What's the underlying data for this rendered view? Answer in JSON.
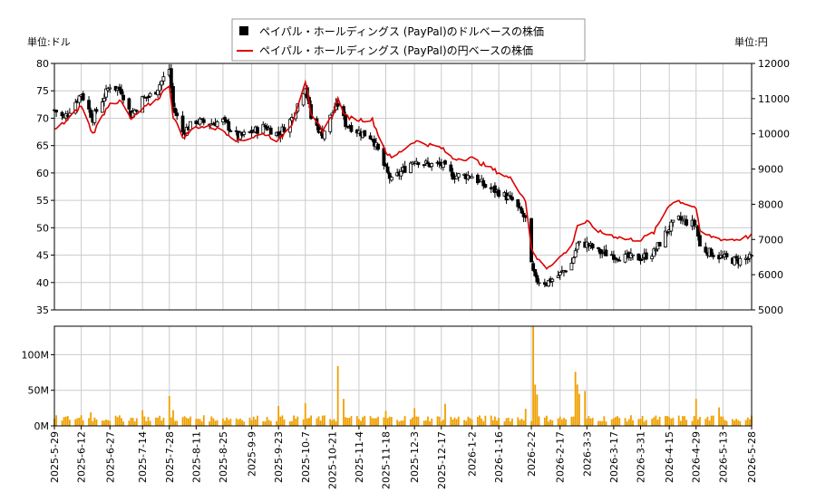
{
  "chart_data": [
    {
      "type": "candlestick+line",
      "legend": {
        "position": "top-center",
        "items": [
          {
            "label": "ペイパル・ホールディングス (PayPal)のドルベースの株価",
            "marker": "square",
            "color": "#000000"
          },
          {
            "label": "ペイパル・ホールディングス (PayPal)の円ベースの株価",
            "marker": "line",
            "color": "#dd0000"
          }
        ]
      },
      "left_axis": {
        "unit_label": "単位:ドル",
        "ylim": [
          35,
          80
        ],
        "ticks": [
          "35",
          "40",
          "45",
          "50",
          "55",
          "60",
          "65",
          "70",
          "75",
          "80"
        ]
      },
      "right_axis": {
        "unit_label": "単位:円",
        "ylim": [
          5000,
          12000
        ],
        "ticks": [
          "5000",
          "6000",
          "7000",
          "8000",
          "9000",
          "10000",
          "11000",
          "12000"
        ]
      },
      "grid": true,
      "x_dates": [
        "2025-5-29",
        "2025-6-12",
        "2025-6-27",
        "2025-7-14",
        "2025-7-28",
        "2025-8-11",
        "2025-8-25",
        "2025-9-9",
        "2025-9-23",
        "2025-10-7",
        "2025-10-21",
        "2025-11-4",
        "2025-11-18",
        "2025-12-3",
        "2025-12-17",
        "2026-1-2",
        "2026-1-16",
        "2026-2-2",
        "2026-2-17",
        "2026-3-3",
        "2026-3-17",
        "2026-3-31",
        "2026-4-15",
        "2026-4-29",
        "2026-5-13",
        "2026-5-28"
      ],
      "usd_close_anchors": [
        [
          "2025-5-29",
          71.5
        ],
        [
          "2025-6-3",
          70.0
        ],
        [
          "2025-6-12",
          74.5
        ],
        [
          "2025-6-18",
          70.0
        ],
        [
          "2025-6-27",
          76.0
        ],
        [
          "2025-7-3",
          75.0
        ],
        [
          "2025-7-8",
          70.5
        ],
        [
          "2025-7-14",
          73.5
        ],
        [
          "2025-7-20",
          74.5
        ],
        [
          "2025-7-28",
          79.0
        ],
        [
          "2025-7-30",
          72.0
        ],
        [
          "2025-8-4",
          67.5
        ],
        [
          "2025-8-11",
          69.5
        ],
        [
          "2025-8-18",
          69.0
        ],
        [
          "2025-8-25",
          69.5
        ],
        [
          "2025-9-2",
          66.5
        ],
        [
          "2025-9-9",
          67.5
        ],
        [
          "2025-9-16",
          68.5
        ],
        [
          "2025-9-23",
          67.0
        ],
        [
          "2025-9-30",
          70.0
        ],
        [
          "2025-10-7",
          76.0
        ],
        [
          "2025-10-10",
          70.0
        ],
        [
          "2025-10-16",
          67.0
        ],
        [
          "2025-10-21",
          71.0
        ],
        [
          "2025-10-24",
          72.5
        ],
        [
          "2025-10-28",
          69.0
        ],
        [
          "2025-11-4",
          67.5
        ],
        [
          "2025-11-11",
          66.5
        ],
        [
          "2025-11-14",
          64.0
        ],
        [
          "2025-11-18",
          60.5
        ],
        [
          "2025-11-21",
          58.5
        ],
        [
          "2025-12-3",
          62.5
        ],
        [
          "2025-12-10",
          61.5
        ],
        [
          "2025-12-17",
          61.5
        ],
        [
          "2025-12-23",
          59.5
        ],
        [
          "2026-1-2",
          59.5
        ],
        [
          "2026-1-9",
          57.5
        ],
        [
          "2026-1-16",
          56.5
        ],
        [
          "2026-1-23",
          55.0
        ],
        [
          "2026-1-30",
          51.5
        ],
        [
          "2026-2-2",
          43.0
        ],
        [
          "2026-2-4",
          40.5
        ],
        [
          "2026-2-10",
          40.0
        ],
        [
          "2026-2-17",
          41.5
        ],
        [
          "2026-2-23",
          43.5
        ],
        [
          "2026-2-26",
          47.0
        ],
        [
          "2026-3-3",
          47.0
        ],
        [
          "2026-3-10",
          45.5
        ],
        [
          "2026-3-17",
          45.0
        ],
        [
          "2026-3-24",
          44.5
        ],
        [
          "2026-3-31",
          44.5
        ],
        [
          "2026-4-7",
          45.5
        ],
        [
          "2026-4-15",
          50.0
        ],
        [
          "2026-4-20",
          51.5
        ],
        [
          "2026-4-29",
          50.5
        ],
        [
          "2026-5-1",
          46.5
        ],
        [
          "2026-5-6",
          45.5
        ],
        [
          "2026-5-13",
          44.5
        ],
        [
          "2026-5-20",
          44.0
        ],
        [
          "2026-5-28",
          44.5
        ]
      ],
      "jpy_line_anchors": [
        [
          "2025-5-29",
          10100
        ],
        [
          "2025-6-5",
          10400
        ],
        [
          "2025-6-12",
          10800
        ],
        [
          "2025-6-18",
          10000
        ],
        [
          "2025-6-27",
          10900
        ],
        [
          "2025-7-3",
          10900
        ],
        [
          "2025-7-8",
          10400
        ],
        [
          "2025-7-14",
          10700
        ],
        [
          "2025-7-22",
          11000
        ],
        [
          "2025-7-28",
          11400
        ],
        [
          "2025-7-30",
          10500
        ],
        [
          "2025-8-4",
          9900
        ],
        [
          "2025-8-11",
          10200
        ],
        [
          "2025-8-18",
          10200
        ],
        [
          "2025-8-25",
          10100
        ],
        [
          "2025-9-2",
          9800
        ],
        [
          "2025-9-9",
          9900
        ],
        [
          "2025-9-16",
          10000
        ],
        [
          "2025-9-23",
          9800
        ],
        [
          "2025-9-30",
          10300
        ],
        [
          "2025-10-7",
          11500
        ],
        [
          "2025-10-10",
          10500
        ],
        [
          "2025-10-16",
          10100
        ],
        [
          "2025-10-21",
          10500
        ],
        [
          "2025-10-24",
          11000
        ],
        [
          "2025-10-28",
          10500
        ],
        [
          "2025-11-4",
          10400
        ],
        [
          "2025-11-11",
          10400
        ],
        [
          "2025-11-14",
          10000
        ],
        [
          "2025-11-18",
          9500
        ],
        [
          "2025-11-21",
          9300
        ],
        [
          "2025-12-3",
          9800
        ],
        [
          "2025-12-10",
          9700
        ],
        [
          "2025-12-17",
          9600
        ],
        [
          "2025-12-23",
          9300
        ],
        [
          "2026-1-2",
          9300
        ],
        [
          "2026-1-9",
          9100
        ],
        [
          "2026-1-16",
          8900
        ],
        [
          "2026-1-23",
          8700
        ],
        [
          "2026-1-30",
          8100
        ],
        [
          "2026-2-2",
          6800
        ],
        [
          "2026-2-4",
          6500
        ],
        [
          "2026-2-10",
          6200
        ],
        [
          "2026-2-17",
          6500
        ],
        [
          "2026-2-23",
          6800
        ],
        [
          "2026-2-26",
          7400
        ],
        [
          "2026-3-3",
          7500
        ],
        [
          "2026-3-10",
          7200
        ],
        [
          "2026-3-17",
          7100
        ],
        [
          "2026-3-24",
          7000
        ],
        [
          "2026-3-31",
          7000
        ],
        [
          "2026-4-7",
          7200
        ],
        [
          "2026-4-15",
          8000
        ],
        [
          "2026-4-20",
          8100
        ],
        [
          "2026-4-29",
          7900
        ],
        [
          "2026-5-1",
          7200
        ],
        [
          "2026-5-6",
          7100
        ],
        [
          "2026-5-13",
          7000
        ],
        [
          "2026-5-20",
          7000
        ],
        [
          "2026-5-28",
          7100
        ]
      ],
      "series_colors": {
        "usd_candle": "#000000",
        "jpy_line": "#dd0000"
      }
    },
    {
      "type": "bar",
      "name": "volume",
      "ylim": [
        0,
        140000000
      ],
      "ticks": [
        {
          "value": 0,
          "label": "0M"
        },
        {
          "value": 50000000,
          "label": "50M"
        },
        {
          "value": 100000000,
          "label": "100M"
        }
      ],
      "color": "#f0a000",
      "grid": true,
      "spikes": [
        [
          "2025-6-12",
          15000000
        ],
        [
          "2025-6-17",
          19000000
        ],
        [
          "2025-7-14",
          22000000
        ],
        [
          "2025-7-28",
          42000000
        ],
        [
          "2025-7-30",
          22000000
        ],
        [
          "2025-9-23",
          28000000
        ],
        [
          "2025-10-7",
          32000000
        ],
        [
          "2025-10-24",
          84000000
        ],
        [
          "2025-10-27",
          38000000
        ],
        [
          "2025-11-18",
          21000000
        ],
        [
          "2025-12-3",
          25000000
        ],
        [
          "2025-12-19",
          31000000
        ],
        [
          "2026-1-30",
          24000000
        ],
        [
          "2026-2-3",
          140000000
        ],
        [
          "2026-2-4",
          58000000
        ],
        [
          "2026-2-5",
          44000000
        ],
        [
          "2026-2-25",
          76000000
        ],
        [
          "2026-2-26",
          58000000
        ],
        [
          "2026-2-27",
          45000000
        ],
        [
          "2026-3-2",
          49000000
        ],
        [
          "2026-4-29",
          38000000
        ],
        [
          "2026-5-11",
          26000000
        ]
      ],
      "baseline": 10000000
    }
  ]
}
